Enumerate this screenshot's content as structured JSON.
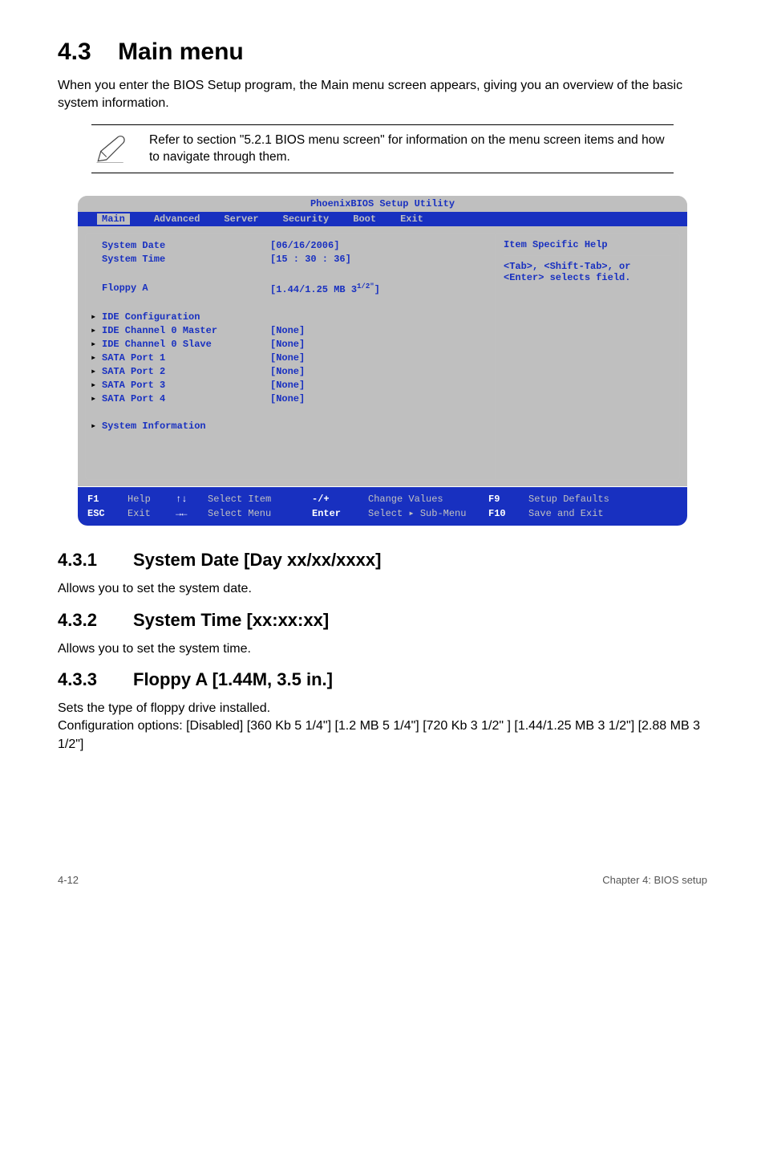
{
  "colors": {
    "bios_bg": "#bfbfbf",
    "bios_text": "#1830c0",
    "menu_bg": "#1830c0",
    "menu_text": "#bfbfbf",
    "selected_bg": "#bfbfbf",
    "selected_text": "#1830c0",
    "footer_bg": "#1830c0",
    "footer_text": "#c0c0c0",
    "footer_bold": "#ffffff"
  },
  "heading": {
    "number": "4.3",
    "title": "Main menu"
  },
  "intro": "When you enter the BIOS Setup program, the Main menu screen appears, giving you an overview of the basic system information.",
  "note": "Refer to section \"5.2.1 BIOS menu screen\" for information on the menu screen items and how to navigate through them.",
  "bios": {
    "title": "PhoenixBIOS Setup Utility",
    "menus": [
      "Main",
      "Advanced",
      "Server",
      "Security",
      "Boot",
      "Exit"
    ],
    "selected_menu": "Main",
    "help_title": "Item Specific Help",
    "help_text": "<Tab>, <Shift-Tab>, or <Enter> selects field.",
    "rows": [
      {
        "arrow": "",
        "label": "System Date",
        "value": "[06/16/2006]"
      },
      {
        "arrow": "",
        "label": "System Time",
        "value": "[15 : 30 : 36]"
      },
      {
        "arrow": "",
        "label": "",
        "value": ""
      },
      {
        "arrow": "",
        "label": "Floppy A",
        "value": "[1.44/1.25 MB 3",
        "suffix": "1/2\"",
        "tail": "]"
      },
      {
        "arrow": "",
        "label": "",
        "value": ""
      },
      {
        "arrow": "▸",
        "label": "IDE Configuration",
        "value": ""
      },
      {
        "arrow": "▸",
        "label": "IDE Channel 0 Master",
        "value": "[None]"
      },
      {
        "arrow": "▸",
        "label": "IDE Channel 0 Slave",
        "value": "[None]"
      },
      {
        "arrow": "▸",
        "label": "SATA Port 1",
        "value": "[None]"
      },
      {
        "arrow": "▸",
        "label": "SATA Port 2",
        "value": "[None]"
      },
      {
        "arrow": "▸",
        "label": "SATA Port 3",
        "value": "[None]"
      },
      {
        "arrow": "▸",
        "label": "SATA Port 4",
        "value": "[None]"
      },
      {
        "arrow": "",
        "label": "",
        "value": ""
      },
      {
        "arrow": "▸",
        "label": "System Information",
        "value": ""
      },
      {
        "arrow": "",
        "label": "",
        "value": ""
      },
      {
        "arrow": "",
        "label": "",
        "value": ""
      },
      {
        "arrow": "",
        "label": "",
        "value": ""
      }
    ],
    "footer": {
      "r1": {
        "c1": "F1",
        "c2": "Help",
        "c3": "↑↓",
        "c4": "Select Item",
        "c5": "-/+",
        "c6": "Change Values",
        "c7": "F9",
        "c8": "Setup Defaults"
      },
      "r2": {
        "c1": "ESC",
        "c2": "Exit",
        "c3": "→←",
        "c4": "Select Menu",
        "c5": "Enter",
        "c6": "Select ▸ Sub-Menu",
        "c7": "F10",
        "c8": "Save and Exit"
      }
    }
  },
  "sections": [
    {
      "num": "4.3.1",
      "title": "System Date [Day xx/xx/xxxx]",
      "text": "Allows you to set the system date."
    },
    {
      "num": "4.3.2",
      "title": "System Time [xx:xx:xx]",
      "text": "Allows you to set the system time."
    },
    {
      "num": "4.3.3",
      "title": "Floppy A [1.44M, 3.5 in.]",
      "text": "Sets the type of floppy drive installed.\nConfiguration options: [Disabled] [360 Kb  5 1/4\"] [1.2 MB  5 1/4\"] [720 Kb  3 1/2\" ] [1.44/1.25 MB 3 1/2\"] [2.88 MB  3 1/2\"]"
    }
  ],
  "page_footer": {
    "left": "4-12",
    "right": "Chapter 4: BIOS setup"
  }
}
